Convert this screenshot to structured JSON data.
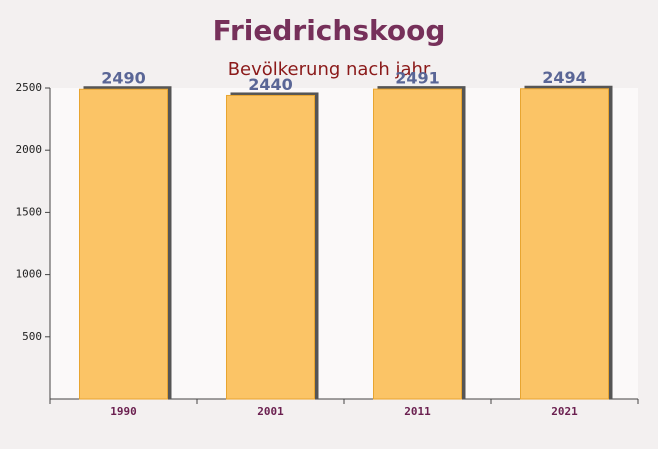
{
  "chart_data": {
    "type": "bar",
    "title": "Friedrichskoog",
    "subtitle": "Bevölkerung nach jahr",
    "categories": [
      "1990",
      "2001",
      "2011",
      "2021"
    ],
    "values": [
      2490,
      2440,
      2491,
      2494
    ],
    "color": "#fbc466",
    "ylim": [
      0,
      2500
    ],
    "yticks": [
      500,
      1000,
      1500,
      2000,
      2500
    ]
  }
}
